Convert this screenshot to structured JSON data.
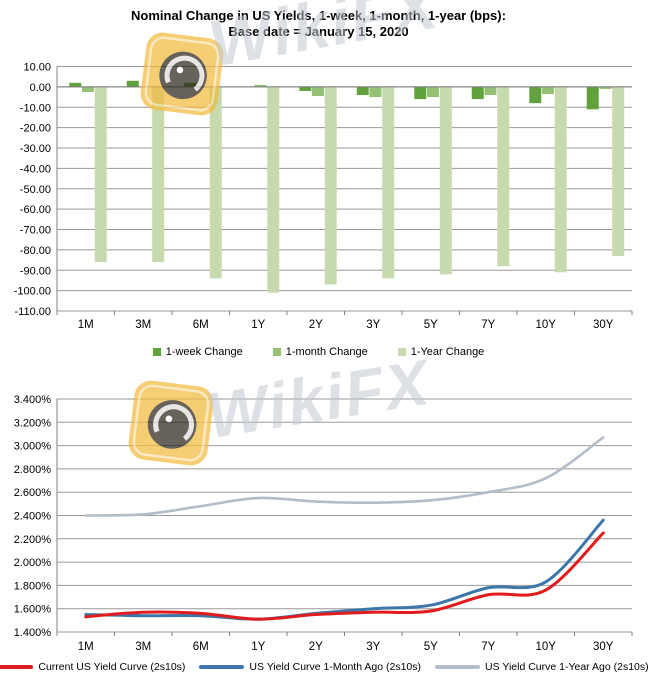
{
  "watermark": {
    "text": "WikiFX",
    "tile_color": "#F2BC3F",
    "eagle_color": "#2E261C"
  },
  "chart_data": [
    {
      "type": "bar",
      "title": "Nominal Change in US Yields, 1-week, 1-month, 1-year (bps):",
      "subtitle": "Base date = January 15, 2020",
      "categories": [
        "1M",
        "3M",
        "6M",
        "1Y",
        "2Y",
        "3Y",
        "5Y",
        "7Y",
        "10Y",
        "30Y"
      ],
      "series": [
        {
          "name": "1-week Change",
          "color": "#61A23C",
          "values": [
            2,
            3,
            2,
            0,
            -2,
            -4,
            -6,
            -6,
            -8,
            -11
          ]
        },
        {
          "name": "1-month Change",
          "color": "#94C173",
          "values": [
            -2.5,
            0,
            0,
            1,
            -4.5,
            -5,
            -5,
            -4,
            -3.5,
            -1
          ]
        },
        {
          "name": "1-Year Change",
          "color": "#C6DAAE",
          "values": [
            -86,
            -86,
            -94,
            -101,
            -97,
            -94,
            -92,
            -88,
            -91,
            -83
          ]
        }
      ],
      "ylim": [
        -110,
        10
      ],
      "ytick_step": 10,
      "yticks": [
        "10.00",
        "0.00",
        "-10.00",
        "-20.00",
        "-30.00",
        "-40.00",
        "-50.00",
        "-60.00",
        "-70.00",
        "-80.00",
        "-90.00",
        "-100.00",
        "-110.00"
      ],
      "grid": true,
      "legend_position": "bottom"
    },
    {
      "type": "line",
      "title": "",
      "categories": [
        "1M",
        "3M",
        "6M",
        "1Y",
        "2Y",
        "3Y",
        "5Y",
        "7Y",
        "10Y",
        "30Y"
      ],
      "series": [
        {
          "name": "Current US Yield Curve (2s10s)",
          "color": "#E31B1C",
          "values": [
            1.53,
            1.57,
            1.56,
            1.51,
            1.55,
            1.57,
            1.58,
            1.72,
            1.76,
            2.25
          ]
        },
        {
          "name": "US Yield Curve 1-Month Ago (2s10s)",
          "color": "#3D76A8",
          "values": [
            1.55,
            1.54,
            1.54,
            1.51,
            1.56,
            1.6,
            1.63,
            1.78,
            1.83,
            2.36
          ]
        },
        {
          "name": "US Yield Curve 1-Year Ago (2s10s)",
          "color": "#B3BDC9",
          "values": [
            2.4,
            2.41,
            2.48,
            2.55,
            2.52,
            2.51,
            2.53,
            2.6,
            2.72,
            3.07
          ]
        }
      ],
      "ylim": [
        1.4,
        3.4
      ],
      "ytick_step": 0.2,
      "yticks": [
        "3.400%",
        "3.200%",
        "3.000%",
        "2.800%",
        "2.600%",
        "2.400%",
        "2.200%",
        "2.000%",
        "1.800%",
        "1.600%",
        "1.400%"
      ],
      "grid": true,
      "legend_position": "bottom"
    }
  ]
}
